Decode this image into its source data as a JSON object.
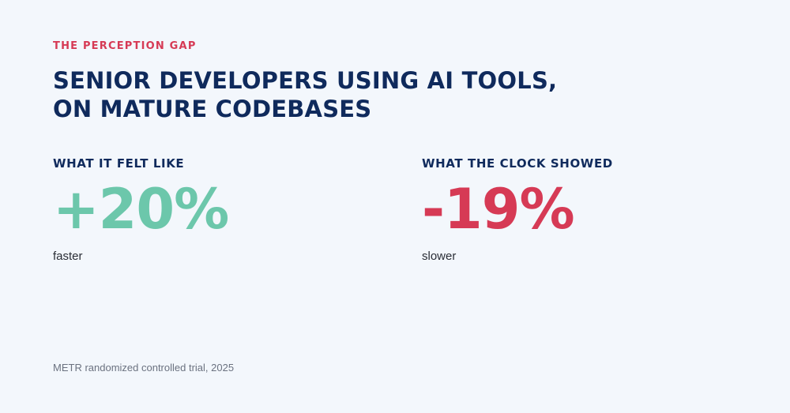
{
  "colors": {
    "background": "#f3f7fc",
    "accent_red": "#d63a55",
    "navy": "#0f2a5c",
    "accent_green": "#6cc7ab",
    "body_text": "#2a2e36",
    "muted_text": "#6b7280"
  },
  "kicker": "THE PERCEPTION GAP",
  "headline": {
    "line1": "SENIOR DEVELOPERS USING AI TOOLS,",
    "line2": "ON MATURE CODEBASES"
  },
  "stats": {
    "felt": {
      "label": "WHAT IT FELT LIKE",
      "value": "+20%",
      "caption": "faster"
    },
    "clock": {
      "label": "WHAT THE CLOCK SHOWED",
      "value": "-19%",
      "caption": "slower"
    }
  },
  "source": "METR randomized controlled trial, 2025"
}
